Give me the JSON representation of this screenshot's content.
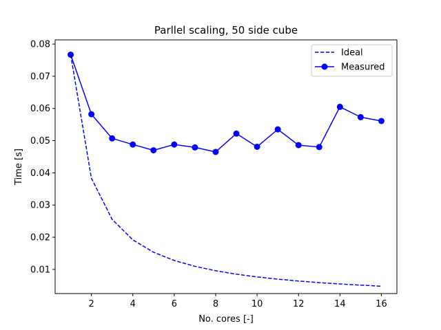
{
  "chart_data": {
    "type": "line",
    "title": "Parllel scaling, 50 side cube",
    "xlabel": "No. cores [-]",
    "ylabel": "Time [s]",
    "xlim": [
      0.25,
      16.75
    ],
    "ylim": [
      0.0025,
      0.0813
    ],
    "xticks": [
      2,
      4,
      6,
      8,
      10,
      12,
      14,
      16
    ],
    "yticks": [
      0.01,
      0.02,
      0.03,
      0.04,
      0.05,
      0.06,
      0.07,
      0.08
    ],
    "xtick_labels": [
      "2",
      "4",
      "6",
      "8",
      "10",
      "12",
      "14",
      "16"
    ],
    "ytick_labels": [
      "0.01",
      "0.02",
      "0.03",
      "0.04",
      "0.05",
      "0.06",
      "0.07",
      "0.08"
    ],
    "grid": false,
    "legend_position": "top-right",
    "x": [
      1,
      2,
      3,
      4,
      5,
      6,
      7,
      8,
      9,
      10,
      11,
      12,
      13,
      14,
      15,
      16
    ],
    "series": [
      {
        "name": "Ideal",
        "style": "dashed",
        "marker": "none",
        "color": "#0000ff",
        "values": [
          0.0767,
          0.03835,
          0.02557,
          0.01918,
          0.01534,
          0.01278,
          0.01096,
          0.00959,
          0.00852,
          0.00767,
          0.00697,
          0.00639,
          0.0059,
          0.00548,
          0.00511,
          0.00479
        ]
      },
      {
        "name": "Measured",
        "style": "solid",
        "marker": "circle",
        "color": "#0000ff",
        "values": [
          0.0767,
          0.0582,
          0.0507,
          0.0488,
          0.047,
          0.0488,
          0.0479,
          0.0465,
          0.0522,
          0.0481,
          0.0535,
          0.0486,
          0.048,
          0.0605,
          0.0573,
          0.0561
        ]
      }
    ]
  }
}
